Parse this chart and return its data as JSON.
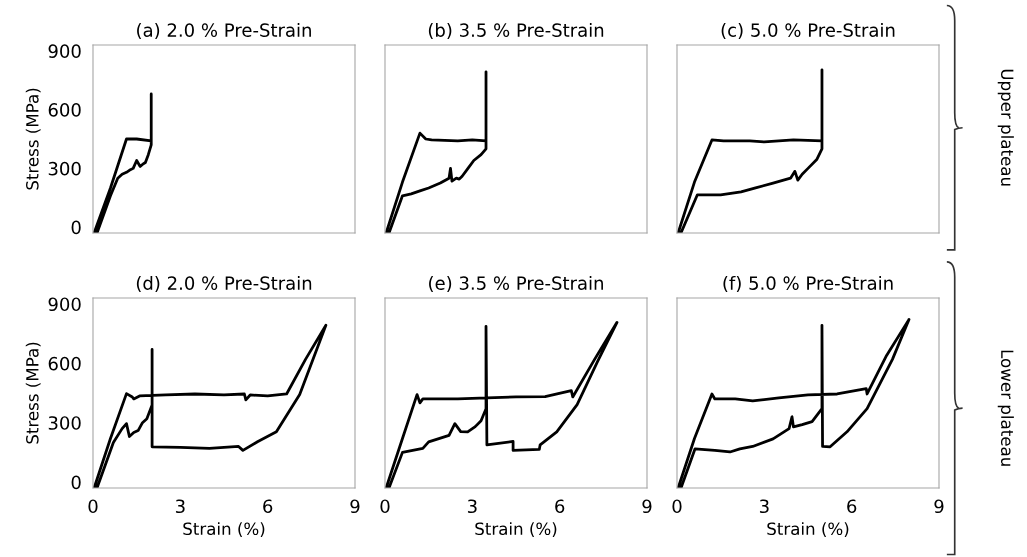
{
  "chart_data": [
    {
      "type": "line",
      "title": "(a) 2.0 % Pre-Strain",
      "ylabel": "Stress (MPa)",
      "xlim": [
        0,
        9
      ],
      "xticks": [
        0,
        3,
        6,
        9
      ],
      "ylim": [
        -30,
        930
      ],
      "yticks": [
        0,
        300,
        600,
        900
      ],
      "tick_labels": "y",
      "grid": false,
      "legend": false,
      "marker": "none",
      "line_style": "solid",
      "series": [
        {
          "color": "#000000",
          "x": [
            0.05,
            0.6,
            1.15,
            1.5,
            2.0,
            2.0,
            2.0,
            1.9,
            1.8,
            1.7,
            1.62,
            1.5,
            1.38,
            1.25,
            1.15,
            1.0,
            0.85,
            0.6,
            0.15
          ],
          "values": [
            -25,
            200,
            450,
            450,
            440,
            680,
            420,
            370,
            330,
            320,
            310,
            340,
            300,
            290,
            280,
            270,
            250,
            160,
            -25
          ]
        }
      ]
    },
    {
      "type": "line",
      "title": "(b) 3.5 % Pre-Strain",
      "xlim": [
        0,
        9
      ],
      "xticks": [
        0,
        3,
        6,
        9
      ],
      "ylim": [
        -30,
        930
      ],
      "yticks": [
        0,
        300,
        600,
        900
      ],
      "tick_labels": false,
      "grid": false,
      "legend": false,
      "marker": "none",
      "line_style": "solid",
      "series": [
        {
          "color": "#000000",
          "x": [
            0.05,
            0.6,
            1.2,
            1.4,
            1.6,
            2.5,
            3.0,
            3.47,
            3.47,
            3.47,
            3.3,
            3.05,
            2.85,
            2.65,
            2.55,
            2.45,
            2.3,
            2.25,
            2.2,
            1.9,
            1.5,
            1.2,
            0.9,
            0.6,
            0.15
          ],
          "values": [
            -25,
            230,
            480,
            450,
            445,
            440,
            445,
            440,
            793,
            400,
            370,
            340,
            300,
            260,
            245,
            250,
            235,
            300,
            250,
            225,
            200,
            185,
            170,
            160,
            -25
          ]
        }
      ]
    },
    {
      "type": "line",
      "title": "(c) 5.0 % Pre-Strain",
      "xlim": [
        0,
        9
      ],
      "xticks": [
        0,
        3,
        6,
        9
      ],
      "ylim": [
        -30,
        930
      ],
      "yticks": [
        0,
        300,
        600,
        900
      ],
      "tick_labels": false,
      "grid": false,
      "legend": false,
      "marker": "none",
      "line_style": "solid",
      "annotations": [
        "Upper plateau"
      ],
      "series": [
        {
          "color": "#000000",
          "x": [
            0.05,
            0.6,
            1.2,
            1.6,
            2.5,
            3.0,
            4.0,
            4.98,
            4.98,
            4.98,
            4.8,
            4.5,
            4.3,
            4.15,
            4.05,
            3.9,
            3.3,
            2.7,
            2.2,
            1.5,
            0.7,
            0.15
          ],
          "values": [
            -25,
            230,
            445,
            440,
            440,
            435,
            445,
            440,
            803,
            400,
            345,
            300,
            270,
            240,
            285,
            250,
            225,
            200,
            180,
            165,
            165,
            -25
          ]
        }
      ]
    },
    {
      "type": "line",
      "title": "(d) 2.0 % Pre-Strain",
      "xlabel": "Strain (%)",
      "ylabel": "Stress (MPa)",
      "xlim": [
        0,
        9
      ],
      "xticks": [
        0,
        3,
        6,
        9
      ],
      "ylim": [
        -30,
        930
      ],
      "yticks": [
        0,
        300,
        600,
        900
      ],
      "grid": false,
      "legend": false,
      "marker": "none",
      "line_style": "solid",
      "series": [
        {
          "color": "#000000",
          "x": [
            0.05,
            0.6,
            1.15,
            1.35,
            1.4,
            1.6,
            2.5,
            3.5,
            4.5,
            5.2,
            5.25,
            5.4,
            6.0,
            6.65,
            7.3,
            8.0,
            7.1,
            6.3,
            5.65,
            5.15,
            5.0,
            4.0,
            3.0,
            2.03,
            2.03,
            2.03,
            1.85,
            1.7,
            1.55,
            1.4,
            1.25,
            1.15,
            1.0,
            0.7,
            0.15
          ],
          "values": [
            -25,
            220,
            447,
            430,
            420,
            435,
            440,
            445,
            440,
            445,
            415,
            440,
            435,
            445,
            620,
            792,
            442,
            254,
            204,
            160,
            180,
            170,
            175,
            178,
            670,
            390,
            320,
            300,
            260,
            250,
            230,
            295,
            270,
            200,
            -25
          ]
        }
      ]
    },
    {
      "type": "line",
      "title": "(e) 3.5 % Pre-Strain",
      "xlabel": "Strain (%)",
      "xlim": [
        0,
        9
      ],
      "xticks": [
        0,
        3,
        6,
        9
      ],
      "ylim": [
        -30,
        930
      ],
      "yticks": [
        0,
        300,
        600,
        900
      ],
      "tick_labels": "x",
      "grid": false,
      "legend": false,
      "marker": "none",
      "line_style": "solid",
      "series": [
        {
          "color": "#000000",
          "x": [
            0.05,
            0.6,
            1.1,
            1.2,
            1.3,
            2.5,
            3.5,
            4.5,
            5.5,
            6.4,
            6.45,
            7.2,
            7.97,
            7.3,
            6.6,
            5.9,
            5.33,
            5.3,
            4.4,
            4.4,
            3.5,
            3.47,
            3.47,
            3.3,
            3.1,
            2.84,
            2.6,
            2.4,
            2.2,
            1.5,
            1.3,
            0.6,
            0.15
          ],
          "values": [
            -25,
            220,
            442,
            400,
            420,
            420,
            425,
            430,
            432,
            462,
            430,
            620,
            807,
            609,
            391,
            254,
            188,
            165,
            160,
            205,
            188,
            787,
            370,
            310,
            280,
            254,
            255,
            295,
            236,
            203,
            170,
            150,
            -25
          ]
        }
      ]
    },
    {
      "type": "line",
      "title": "(f) 5.0 % Pre-Strain",
      "xlabel": "Strain (%)",
      "xlim": [
        0,
        9
      ],
      "xticks": [
        0,
        3,
        6,
        9
      ],
      "ylim": [
        -30,
        930
      ],
      "yticks": [
        0,
        300,
        600,
        900
      ],
      "tick_labels": "x",
      "grid": false,
      "legend": false,
      "marker": "none",
      "line_style": "solid",
      "annotations": [
        "Lower plateau"
      ],
      "series": [
        {
          "color": "#000000",
          "x": [
            0.05,
            0.6,
            1.2,
            1.3,
            2.0,
            2.6,
            3.5,
            4.5,
            5.5,
            6.5,
            6.53,
            7.2,
            7.97,
            7.4,
            6.53,
            5.84,
            5.26,
            5.0,
            4.98,
            4.98,
            4.64,
            4.3,
            4.0,
            3.95,
            3.85,
            3.3,
            2.6,
            2.16,
            1.82,
            1.3,
            0.62,
            0.15
          ],
          "values": [
            -25,
            220,
            445,
            420,
            420,
            410,
            425,
            440,
            445,
            472,
            445,
            640,
            822,
            620,
            371,
            254,
            178,
            180,
            792,
            371,
            305,
            290,
            279,
            330,
            270,
            218,
            180,
            168,
            152,
            160,
            168,
            -25
          ]
        }
      ]
    }
  ]
}
